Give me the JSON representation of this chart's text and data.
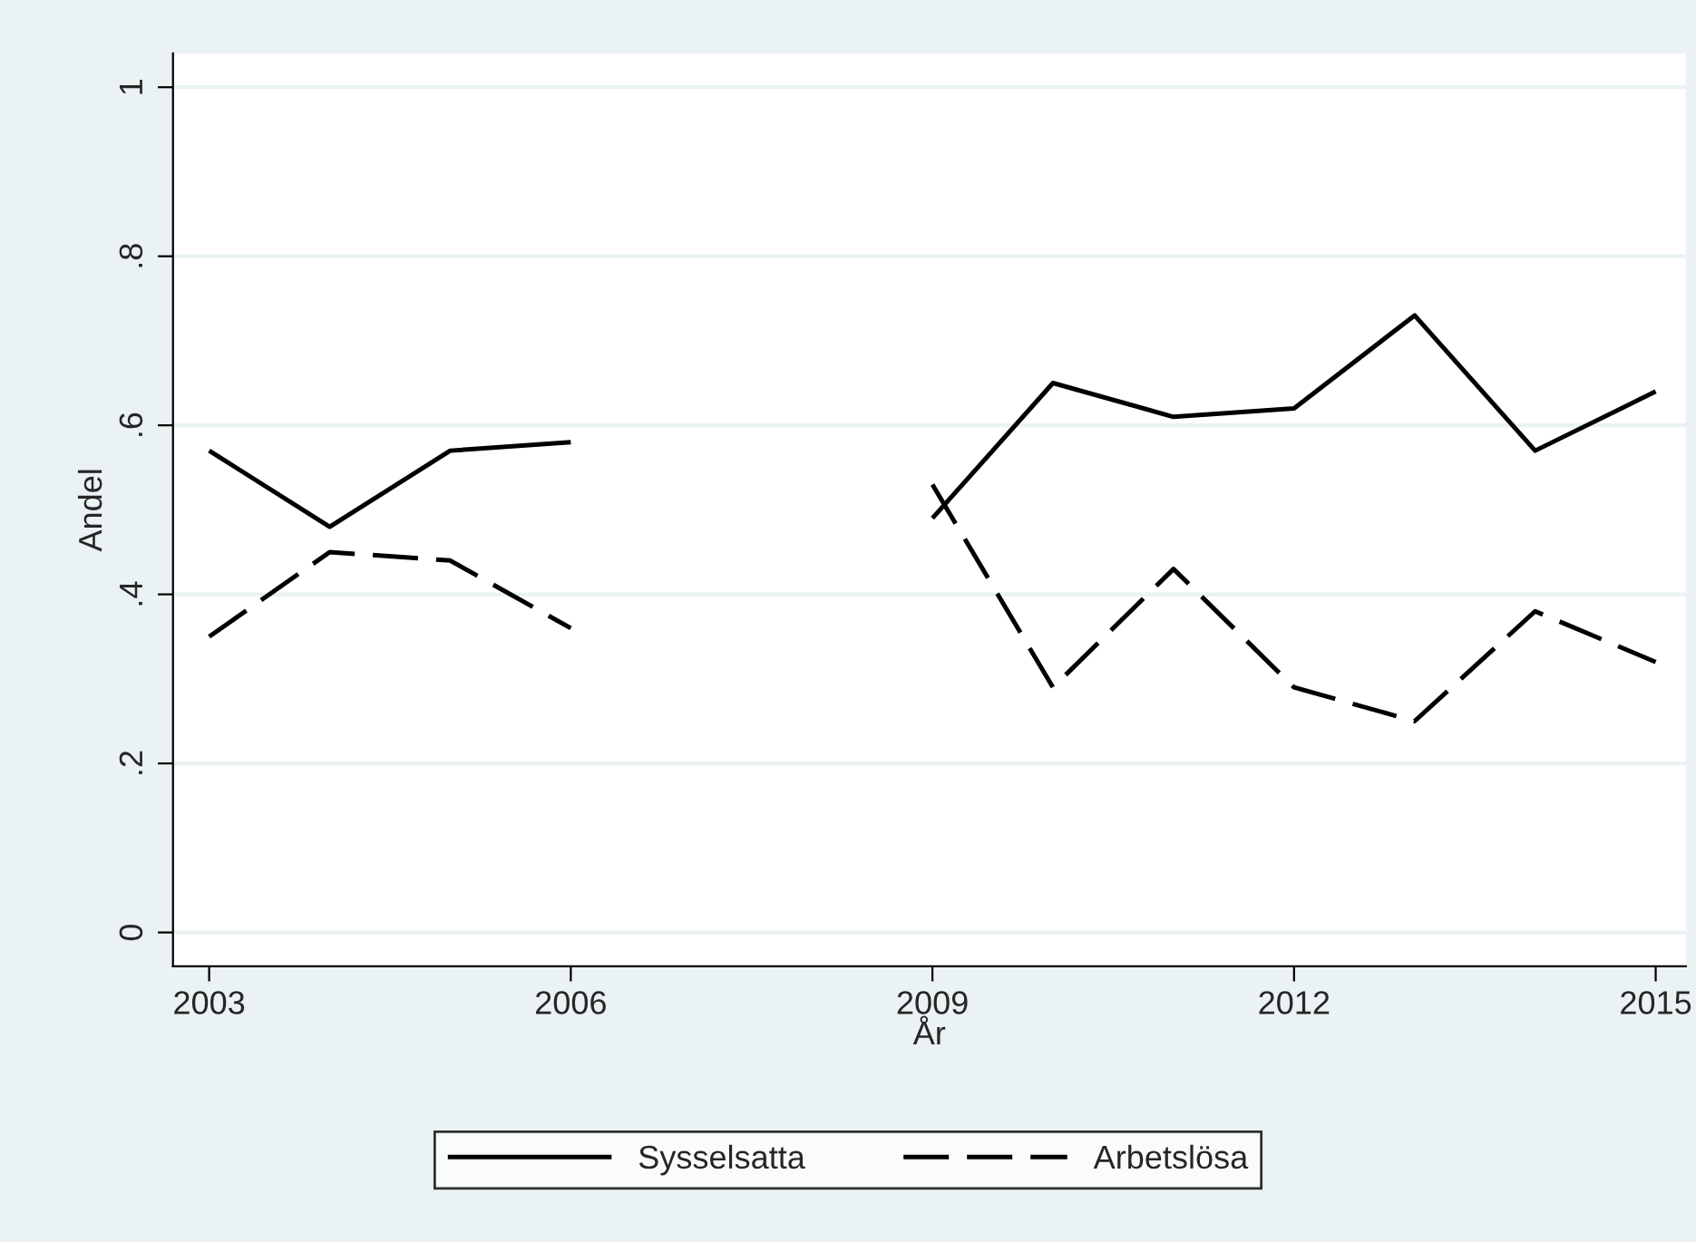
{
  "chart_data": {
    "type": "line",
    "xlabel": "År",
    "ylabel": "Andel",
    "x": [
      2003,
      2004,
      2005,
      2006,
      2007,
      2008,
      2009,
      2010,
      2011,
      2012,
      2013,
      2014,
      2015
    ],
    "series": [
      {
        "name": "Sysselsatta",
        "color": "#000000",
        "line_style": "solid",
        "values": [
          0.57,
          0.48,
          0.57,
          0.58,
          null,
          null,
          0.49,
          0.65,
          0.61,
          0.62,
          0.73,
          0.57,
          0.64
        ]
      },
      {
        "name": "Arbetslösa",
        "color": "#000000",
        "line_style": "dashed",
        "values": [
          0.35,
          0.45,
          0.44,
          0.36,
          null,
          null,
          0.53,
          0.29,
          0.43,
          0.29,
          0.25,
          0.38,
          0.32
        ]
      }
    ],
    "xlim": [
      2002.7,
      2015.25
    ],
    "xticks": [
      2003,
      2006,
      2009,
      2012,
      2015
    ],
    "ylim": [
      -0.04,
      1.04
    ],
    "yticks": [
      {
        "value": 0,
        "label": "0"
      },
      {
        "value": 0.2,
        "label": ".2"
      },
      {
        "value": 0.4,
        "label": ".4"
      },
      {
        "value": 0.6,
        "label": ".6"
      },
      {
        "value": 0.8,
        "label": ".8"
      },
      {
        "value": 1,
        "label": "1"
      }
    ],
    "grid": "y",
    "legend": "bottom",
    "marker": "none"
  }
}
